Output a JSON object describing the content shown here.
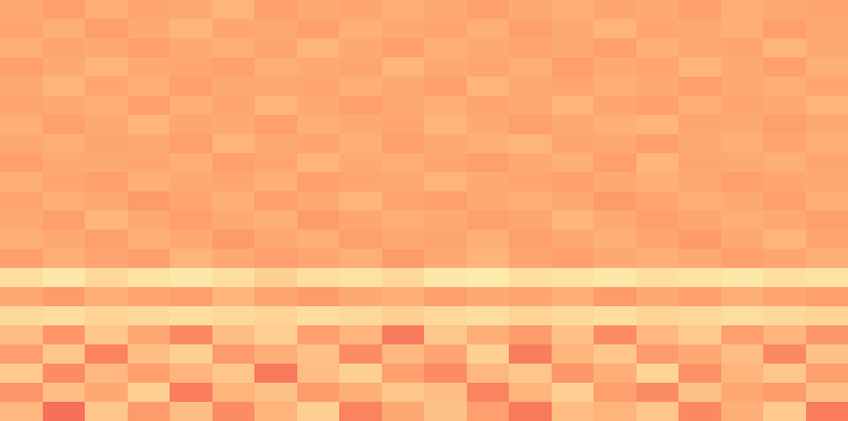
{
  "chart_data": {
    "type": "heatmap",
    "tick_labels": false,
    "zlim": [
      0,
      1
    ],
    "cells": [
      [
        0.82,
        0.8,
        0.83,
        0.81,
        0.82,
        0.84,
        0.8,
        0.82,
        0.81,
        0.83,
        0.82,
        0.8,
        0.82,
        0.83,
        0.81,
        0.82,
        0.8,
        0.83,
        0.82,
        0.81
      ],
      [
        0.81,
        0.83,
        0.8,
        0.82,
        0.84,
        0.81,
        0.82,
        0.8,
        0.83,
        0.82,
        0.81,
        0.83,
        0.8,
        0.82,
        0.84,
        0.81,
        0.82,
        0.83,
        0.8,
        0.82
      ],
      [
        0.83,
        0.81,
        0.82,
        0.8,
        0.82,
        0.83,
        0.81,
        0.84,
        0.82,
        0.8,
        0.83,
        0.82,
        0.81,
        0.82,
        0.8,
        0.83,
        0.82,
        0.81,
        0.84,
        0.82
      ],
      [
        0.8,
        0.82,
        0.84,
        0.82,
        0.81,
        0.8,
        0.83,
        0.82,
        0.81,
        0.84,
        0.82,
        0.81,
        0.83,
        0.8,
        0.82,
        0.81,
        0.84,
        0.82,
        0.8,
        0.83
      ],
      [
        0.82,
        0.84,
        0.81,
        0.83,
        0.8,
        0.82,
        0.82,
        0.81,
        0.83,
        0.82,
        0.8,
        0.84,
        0.82,
        0.81,
        0.83,
        0.82,
        0.8,
        0.82,
        0.83,
        0.81
      ],
      [
        0.81,
        0.82,
        0.83,
        0.8,
        0.83,
        0.81,
        0.84,
        0.82,
        0.8,
        0.82,
        0.83,
        0.81,
        0.82,
        0.84,
        0.81,
        0.8,
        0.83,
        0.81,
        0.82,
        0.84
      ],
      [
        0.83,
        0.8,
        0.82,
        0.84,
        0.81,
        0.82,
        0.8,
        0.83,
        0.82,
        0.81,
        0.84,
        0.82,
        0.8,
        0.82,
        0.83,
        0.84,
        0.81,
        0.82,
        0.8,
        0.82
      ],
      [
        0.82,
        0.83,
        0.81,
        0.82,
        0.8,
        0.84,
        0.82,
        0.81,
        0.83,
        0.8,
        0.82,
        0.83,
        0.84,
        0.81,
        0.82,
        0.8,
        0.82,
        0.83,
        0.81,
        0.83
      ],
      [
        0.8,
        0.82,
        0.82,
        0.81,
        0.83,
        0.8,
        0.81,
        0.84,
        0.82,
        0.83,
        0.81,
        0.8,
        0.82,
        0.83,
        0.8,
        0.84,
        0.81,
        0.82,
        0.83,
        0.81
      ],
      [
        0.83,
        0.81,
        0.8,
        0.83,
        0.82,
        0.81,
        0.83,
        0.8,
        0.81,
        0.82,
        0.84,
        0.82,
        0.81,
        0.8,
        0.82,
        0.83,
        0.82,
        0.8,
        0.81,
        0.82
      ],
      [
        0.81,
        0.83,
        0.82,
        0.79,
        0.81,
        0.83,
        0.8,
        0.82,
        0.84,
        0.81,
        0.8,
        0.82,
        0.83,
        0.82,
        0.79,
        0.81,
        0.83,
        0.82,
        0.8,
        0.83
      ],
      [
        0.82,
        0.8,
        0.84,
        0.82,
        0.8,
        0.82,
        0.83,
        0.79,
        0.81,
        0.83,
        0.82,
        0.8,
        0.81,
        0.84,
        0.82,
        0.8,
        0.81,
        0.83,
        0.82,
        0.8
      ],
      [
        0.83,
        0.82,
        0.8,
        0.83,
        0.82,
        0.79,
        0.82,
        0.83,
        0.8,
        0.82,
        0.81,
        0.83,
        0.8,
        0.82,
        0.83,
        0.81,
        0.79,
        0.82,
        0.84,
        0.81
      ],
      [
        0.8,
        0.83,
        0.81,
        0.8,
        0.84,
        0.82,
        0.8,
        0.81,
        0.83,
        0.79,
        0.82,
        0.84,
        0.81,
        0.8,
        0.82,
        0.83,
        0.82,
        0.8,
        0.81,
        0.83
      ],
      [
        0.93,
        0.95,
        0.92,
        0.94,
        0.95,
        0.93,
        0.9,
        0.93,
        0.94,
        0.92,
        0.95,
        0.96,
        0.93,
        0.94,
        0.95,
        0.93,
        0.94,
        0.95,
        0.93,
        0.94
      ],
      [
        0.82,
        0.79,
        0.83,
        0.81,
        0.8,
        0.84,
        0.81,
        0.79,
        0.82,
        0.83,
        0.8,
        0.82,
        0.81,
        0.83,
        0.79,
        0.82,
        0.8,
        0.83,
        0.81,
        0.8
      ],
      [
        0.92,
        0.93,
        0.91,
        0.92,
        0.93,
        0.92,
        0.91,
        0.93,
        0.92,
        0.9,
        0.92,
        0.93,
        0.91,
        0.92,
        0.93,
        0.91,
        0.92,
        0.93,
        0.92,
        0.91
      ],
      [
        0.86,
        0.78,
        0.88,
        0.82,
        0.75,
        0.86,
        0.9,
        0.8,
        0.84,
        0.72,
        0.88,
        0.83,
        0.79,
        0.87,
        0.76,
        0.85,
        0.89,
        0.8,
        0.84,
        0.78
      ],
      [
        0.8,
        0.88,
        0.74,
        0.86,
        0.9,
        0.79,
        0.83,
        0.87,
        0.76,
        0.85,
        0.81,
        0.9,
        0.73,
        0.84,
        0.88,
        0.79,
        0.82,
        0.86,
        0.75,
        0.87
      ],
      [
        0.89,
        0.76,
        0.85,
        0.8,
        0.84,
        0.88,
        0.72,
        0.86,
        0.9,
        0.8,
        0.76,
        0.85,
        0.88,
        0.78,
        0.83,
        0.91,
        0.77,
        0.84,
        0.88,
        0.8
      ],
      [
        0.78,
        0.86,
        0.82,
        0.9,
        0.73,
        0.84,
        0.87,
        0.79,
        0.83,
        0.88,
        0.86,
        0.74,
        0.84,
        0.9,
        0.8,
        0.76,
        0.87,
        0.82,
        0.79,
        0.86
      ],
      [
        0.85,
        0.7,
        0.88,
        0.79,
        0.86,
        0.76,
        0.84,
        0.9,
        0.74,
        0.82,
        0.87,
        0.8,
        0.72,
        0.86,
        0.84,
        0.88,
        0.75,
        0.83,
        0.89,
        0.73
      ]
    ]
  }
}
